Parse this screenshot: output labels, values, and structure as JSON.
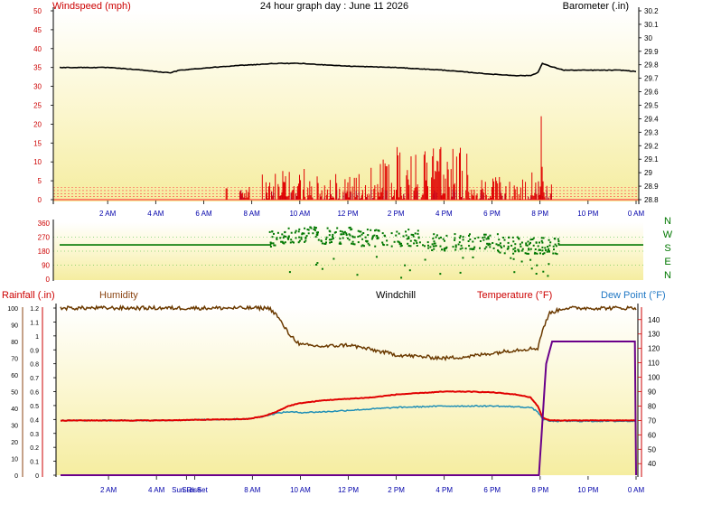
{
  "colors": {
    "wind_speed": "#e00000",
    "gust": "#0000e0",
    "barometer": "#000000",
    "wind_dir": "#007700",
    "humidity": "#6b3a00",
    "temperature": "#e00000",
    "dew_point": "#1f8fb6",
    "rainfall": "#6a008a",
    "label_red": "#cc0000",
    "label_blue": "#1f77c4",
    "label_brown": "#8b4513",
    "label_purple": "#7a0a8a",
    "tick_blue": "#0000aa",
    "grid_red": "#ff4444",
    "grid_green": "#00aa00",
    "bg_top": "#ffffff",
    "bg_bottom": "#f5eda0"
  },
  "chart_data": [
    {
      "type": "line",
      "id": "wind-baro",
      "title": "24 hour graph day : June 11 2026",
      "ylabel_left": "Windspeed (mph)",
      "ylabel_right": "Barometer (.in)",
      "x_tick_labels": [
        "2 AM",
        "4 AM",
        "6 AM",
        "8 AM",
        "10 AM",
        "12 PM",
        "2 PM",
        "4 PM",
        "6 PM",
        "8 PM",
        "10 PM",
        "0 AM"
      ],
      "y_left_ticks": [
        "50",
        "45",
        "40",
        "35",
        "30",
        "25",
        "20",
        "15",
        "10",
        "5",
        "0"
      ],
      "y_right_ticks": [
        "30.2",
        "30.1",
        "30",
        "29.9",
        "29.8",
        "29.7",
        "29.6",
        "29.5",
        "29.4",
        "29.3",
        "29.2",
        "29.1",
        "29",
        "28.9",
        "28.8"
      ],
      "ylim_left": [
        0,
        50
      ],
      "ylim_right": [
        28.8,
        30.2
      ],
      "series": [
        {
          "name": "Barometer (.in)",
          "x_hours": [
            0,
            2,
            3.5,
            4,
            4.6,
            5,
            7,
            9,
            10,
            12,
            14,
            16,
            18,
            19,
            19.6,
            19.9,
            20.1,
            20.4,
            21,
            22,
            23.4,
            24
          ],
          "values": [
            29.78,
            29.78,
            29.76,
            29.75,
            29.74,
            29.76,
            29.79,
            29.81,
            29.81,
            29.79,
            29.78,
            29.76,
            29.73,
            29.72,
            29.72,
            29.74,
            29.81,
            29.79,
            29.76,
            29.76,
            29.76,
            29.75
          ]
        }
      ]
    },
    {
      "type": "scatter",
      "id": "wind-direction",
      "y_left_ticks": [
        "360",
        "270",
        "180",
        "90",
        "0"
      ],
      "compass_labels": [
        "N",
        "W",
        "S",
        "E",
        "N"
      ],
      "ylim": [
        0,
        360
      ],
      "series": [
        {
          "name": "Wind direction",
          "baseline_value": 220
        }
      ]
    },
    {
      "type": "line",
      "id": "temp-humidity",
      "legend": [
        "Rainfall (.in)",
        "Humidity",
        "Windchill",
        "Temperature (°F)",
        "Dew Point (°F)"
      ],
      "x_tick_labels": [
        "2 AM",
        "4 AM",
        "Sun Rise",
        "Sun Set",
        "8 AM",
        "10 AM",
        "12 PM",
        "2 PM",
        "4 PM",
        "6 PM",
        "8 PM",
        "10 PM",
        "0 AM"
      ],
      "y_rain_ticks": [
        "1.2",
        "1.1",
        "1",
        "0.9",
        "0.8",
        "0.7",
        "0.6",
        "0.5",
        "0.4",
        "0.3",
        "0.2",
        "0.1",
        "0"
      ],
      "y_humidity_ticks": [
        "100",
        "90",
        "80",
        "70",
        "60",
        "50",
        "40",
        "30",
        "20",
        "10",
        "0"
      ],
      "y_temp_ticks": [
        "140",
        "130",
        "120",
        "110",
        "100",
        "90",
        "80",
        "70",
        "60",
        "50",
        "40"
      ],
      "ylim_humidity": [
        0,
        100
      ],
      "ylim_temp": [
        32,
        148
      ],
      "ylim_rain": [
        0,
        1.2
      ],
      "series": [
        {
          "name": "Humidity",
          "x_hours": [
            0,
            4,
            8,
            8.7,
            9,
            9.5,
            10,
            11,
            12,
            13,
            14,
            15,
            16,
            17,
            18,
            19,
            19.9,
            20.1,
            20.4,
            21,
            22,
            24
          ],
          "values": [
            100,
            100,
            100,
            100,
            96,
            85,
            78,
            77,
            78,
            75,
            72,
            71,
            70,
            71,
            73,
            75,
            76,
            87,
            97,
            100,
            100,
            100
          ]
        },
        {
          "name": "Temperature (°F)",
          "x_hours": [
            0,
            2,
            4,
            6,
            7.8,
            8.5,
            9,
            9.5,
            10,
            11,
            12,
            13,
            14,
            15,
            16,
            17,
            18,
            19,
            19.6,
            19.9,
            20.1,
            20.4,
            21,
            22,
            24
          ],
          "values": [
            70,
            70,
            70,
            70.5,
            71,
            73,
            76,
            80,
            82,
            84,
            85,
            86,
            88,
            89,
            90,
            90,
            89.5,
            88,
            86,
            80,
            72,
            70,
            70,
            70,
            70
          ]
        },
        {
          "name": "Dew Point (°F)",
          "x_hours": [
            0,
            2,
            4,
            6,
            7.8,
            8.5,
            9,
            9.5,
            10,
            11,
            12,
            13,
            14,
            15,
            16,
            17,
            18,
            19,
            19.6,
            19.9,
            20.1,
            20.4,
            21,
            22,
            24
          ],
          "values": [
            70,
            70,
            70,
            70.5,
            71,
            73,
            75,
            76,
            75.5,
            76,
            77,
            78,
            79,
            79.5,
            80,
            80,
            80,
            79.5,
            79,
            76,
            71,
            69.5,
            69.5,
            69.5,
            69.5
          ]
        },
        {
          "name": "Rainfall (.in)",
          "x_hours": [
            0,
            19.95,
            20.1,
            20.25,
            20.5,
            21,
            23.95,
            24
          ],
          "values": [
            0,
            0,
            0.4,
            0.8,
            0.96,
            0.96,
            0.96,
            0
          ]
        }
      ]
    }
  ]
}
